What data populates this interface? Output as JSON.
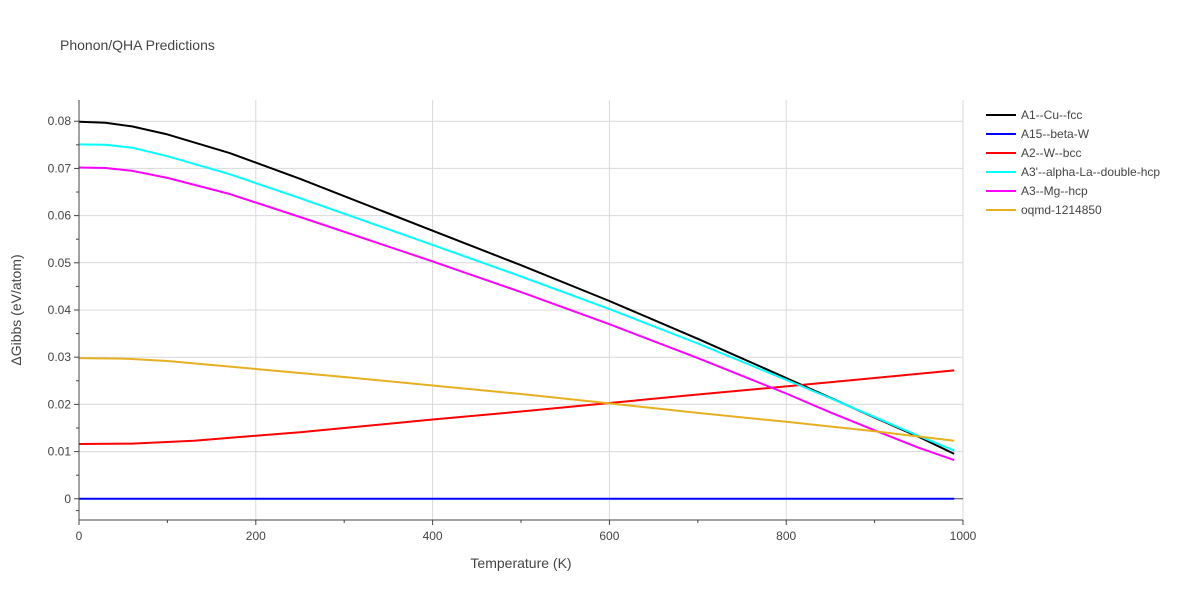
{
  "chart_data": {
    "type": "line",
    "title": "Phonon/QHA Predictions",
    "xlabel": "Temperature (K)",
    "ylabel": "ΔGibbs (eV/atom)",
    "xlim": [
      0,
      1000
    ],
    "ylim": [
      -0.0045,
      0.0845
    ],
    "xticks": [
      0,
      200,
      400,
      600,
      800,
      1000
    ],
    "yticks": [
      0,
      0.01,
      0.02,
      0.03,
      0.04,
      0.05,
      0.06,
      0.07,
      0.08
    ],
    "xtick_labels": [
      "0",
      "200",
      "400",
      "600",
      "800",
      "1000"
    ],
    "ytick_labels": [
      "0",
      "0.01",
      "0.02",
      "0.03",
      "0.04",
      "0.05",
      "0.06",
      "0.07",
      "0.08"
    ],
    "grid": true,
    "legend_position": "right",
    "series": [
      {
        "name": "A1--Cu--fcc",
        "color": "#000000",
        "x": [
          0,
          30,
          60,
          100,
          170,
          250,
          400,
          500,
          600,
          700,
          800,
          850,
          900,
          950,
          990
        ],
        "y": [
          0.0799,
          0.0797,
          0.0789,
          0.0772,
          0.0733,
          0.0678,
          0.0568,
          0.0495,
          0.0419,
          0.0339,
          0.0256,
          0.0214,
          0.0172,
          0.0131,
          0.0095
        ]
      },
      {
        "name": "A15--beta-W",
        "color": "#0000ff",
        "x": [
          0,
          990
        ],
        "y": [
          0.0,
          0.0
        ]
      },
      {
        "name": "A2--W--bcc",
        "color": "#ff0000",
        "x": [
          0,
          60,
          130,
          250,
          400,
          500,
          600,
          700,
          800,
          900,
          990
        ],
        "y": [
          0.0116,
          0.0117,
          0.0123,
          0.0141,
          0.0168,
          0.0185,
          0.0203,
          0.0221,
          0.0238,
          0.0256,
          0.0272
        ]
      },
      {
        "name": "A3'--alpha-La--double-hcp",
        "color": "#00ffff",
        "x": [
          0,
          30,
          60,
          100,
          170,
          250,
          400,
          500,
          600,
          700,
          800,
          850,
          900,
          950,
          990
        ],
        "y": [
          0.0751,
          0.075,
          0.0744,
          0.0726,
          0.0688,
          0.0637,
          0.0538,
          0.0471,
          0.0402,
          0.0329,
          0.0252,
          0.0213,
          0.0173,
          0.0133,
          0.0102
        ]
      },
      {
        "name": "A3--Mg--hcp",
        "color": "#ff00ff",
        "x": [
          0,
          30,
          60,
          100,
          170,
          250,
          400,
          500,
          600,
          700,
          800,
          850,
          900,
          950,
          990
        ],
        "y": [
          0.0702,
          0.0701,
          0.0695,
          0.068,
          0.0646,
          0.0597,
          0.0503,
          0.0438,
          0.037,
          0.0298,
          0.0223,
          0.0183,
          0.0145,
          0.0108,
          0.0082
        ]
      },
      {
        "name": "oqmd-1214850",
        "color": "#e6b020",
        "x": [
          0,
          50,
          100,
          200,
          300,
          400,
          500,
          600,
          700,
          800,
          900,
          990
        ],
        "y": [
          0.0298,
          0.0297,
          0.0292,
          0.0275,
          0.0258,
          0.024,
          0.0222,
          0.0202,
          0.0182,
          0.0163,
          0.0143,
          0.0123
        ]
      }
    ]
  }
}
